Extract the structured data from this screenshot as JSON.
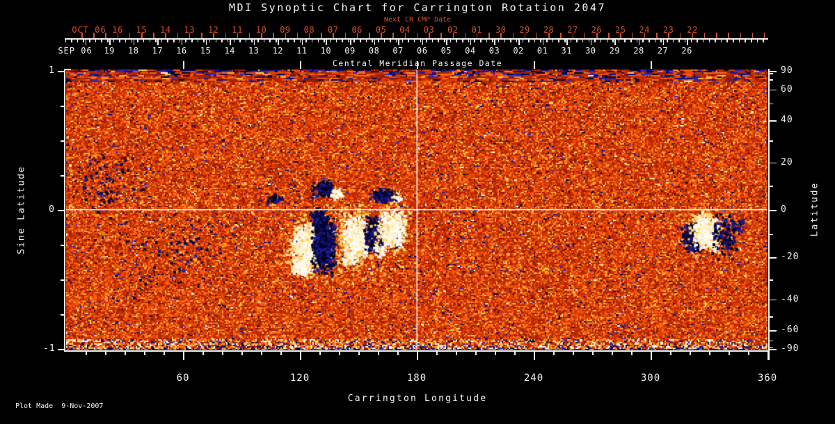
{
  "title": "MDI Synoptic Chart for Carrington Rotation 2047",
  "footer": {
    "plot_made": "Plot Made  9-Nov-2007"
  },
  "axes": {
    "top_red": {
      "title": "Next CR CMP Date",
      "month": "OCT 06",
      "days": [
        "16",
        "15",
        "14",
        "13",
        "12",
        "11",
        "10",
        "09",
        "08",
        "07",
        "06",
        "05",
        "04",
        "03",
        "02",
        "01",
        "30",
        "29",
        "28",
        "27",
        "26",
        "25",
        "24",
        "23",
        "22"
      ]
    },
    "top_white": {
      "title": "Central Meridian Passage Date",
      "month": "SEP 06",
      "days": [
        "19",
        "18",
        "17",
        "16",
        "15",
        "14",
        "13",
        "12",
        "11",
        "10",
        "09",
        "08",
        "07",
        "06",
        "05",
        "04",
        "03",
        "02",
        "01",
        "31",
        "30",
        "29",
        "28",
        "27",
        "26"
      ]
    },
    "left": {
      "title": "Sine Latitude",
      "major_ticks": [
        {
          "label": "1",
          "sine": 1
        },
        {
          "label": "0",
          "sine": 0
        },
        {
          "label": "-1",
          "sine": -1
        }
      ],
      "minor_sines": [
        0.75,
        0.5,
        0.25,
        -0.25,
        -0.5,
        -0.75
      ]
    },
    "right": {
      "title": "Latitude",
      "major_ticks": [
        {
          "label": "90",
          "deg": 90
        },
        {
          "label": "60",
          "deg": 60
        },
        {
          "label": "40",
          "deg": 40
        },
        {
          "label": "20",
          "deg": 20
        },
        {
          "label": "0",
          "deg": 0
        },
        {
          "label": "-20",
          "deg": -20
        },
        {
          "label": "-40",
          "deg": -40
        },
        {
          "label": "-60",
          "deg": -60
        },
        {
          "label": "-90",
          "deg": -90
        }
      ],
      "minor_degs": [
        80,
        70,
        50,
        30,
        10,
        -10,
        -30,
        -50,
        -70,
        -80
      ]
    },
    "bottom": {
      "title": "Carrington Longitude",
      "major_ticks": [
        {
          "label": "60",
          "deg": 60
        },
        {
          "label": "120",
          "deg": 120
        },
        {
          "label": "180",
          "deg": 180
        },
        {
          "label": "240",
          "deg": 240
        },
        {
          "label": "300",
          "deg": 300
        },
        {
          "label": "360",
          "deg": 360
        }
      ],
      "minor_step_deg": 10
    }
  },
  "colors": {
    "background": "#000000",
    "axis": "#f2f2f2",
    "date_red": "#dd4f22",
    "noise_oranges": [
      "#b22400",
      "#c22a00",
      "#cc3200",
      "#d63a00",
      "#e04200",
      "#ea4c06",
      "#f4560e",
      "#fc6014",
      "#ff6a1a"
    ],
    "noise_darkreds": [
      "#9c1f00",
      "#8c1c00",
      "#a82400"
    ],
    "noise_yellows": [
      "#ff9828",
      "#ffb438",
      "#ffcc50",
      "#f08820"
    ],
    "noise_navies": [
      "#101080",
      "#1a1a9a",
      "#000050",
      "#2a2ab8",
      "#000018"
    ],
    "noise_whites": [
      "#fff8e8",
      "#ffe8c0",
      "#ffffff"
    ],
    "positive_polarity": [
      "#ffffff",
      "#fffdf2",
      "#ffefc4"
    ],
    "negative_polarity": [
      "#000030",
      "#00084a",
      "#121270",
      "#1c1c96",
      "#000010"
    ],
    "fringe_yellow": "#ffd060",
    "crosshair": "#ffffff"
  },
  "chart_data": {
    "type": "heatmap",
    "title": "MDI Synoptic Chart for Carrington Rotation 2047",
    "xlabel": "Carrington Longitude",
    "ylabel_left": "Sine Latitude",
    "ylabel_right": "Latitude",
    "x_range": [
      0,
      360
    ],
    "y_range_sine": [
      -1,
      1
    ],
    "x_major_ticks": [
      60,
      120,
      180,
      240,
      300,
      360
    ],
    "left_major_ticks": [
      1,
      0,
      -1
    ],
    "right_major_ticks_deg": [
      90,
      60,
      40,
      20,
      0,
      -20,
      -40,
      -60,
      -90
    ],
    "top_axis_red_days": [
      "OCT 06",
      "16",
      "15",
      "14",
      "13",
      "12",
      "11",
      "10",
      "09",
      "08",
      "07",
      "06",
      "05",
      "04",
      "03",
      "02",
      "01",
      "30",
      "29",
      "28",
      "27",
      "26",
      "25",
      "24",
      "23",
      "22"
    ],
    "top_axis_white_days": [
      "SEP 06",
      "19",
      "18",
      "17",
      "16",
      "15",
      "14",
      "13",
      "12",
      "11",
      "10",
      "09",
      "08",
      "07",
      "06",
      "05",
      "04",
      "03",
      "02",
      "01",
      "31",
      "30",
      "29",
      "28",
      "27",
      "26"
    ],
    "reference_lines": {
      "longitude": 180,
      "latitude": 0
    },
    "field_description": "Full-disk MDI line-of-sight magnetic field synoptic map: speckled orange/red quiet-sun background with yellow mottling, sparse dark-blue salt-and-pepper noise, a dark streaked band at the north pole and a bright speckled band at the south pole",
    "active_regions": [
      {
        "longitude_range": [
          115,
          175
        ],
        "latitude_range": [
          -25,
          8
        ],
        "description": "cluster of bipolar active regions: bright white (positive) patches paired with dark navy/black (negative) patches just south of the equator"
      },
      {
        "longitude_range": [
          315,
          350
        ],
        "latitude_range": [
          -22,
          2
        ],
        "description": "bipolar active region with dark leading polarity, bright white trailing polarity and dark plage scattered to the east"
      }
    ],
    "legend": "none",
    "grid": "white crosshair lines at longitude 180 and latitude 0"
  }
}
